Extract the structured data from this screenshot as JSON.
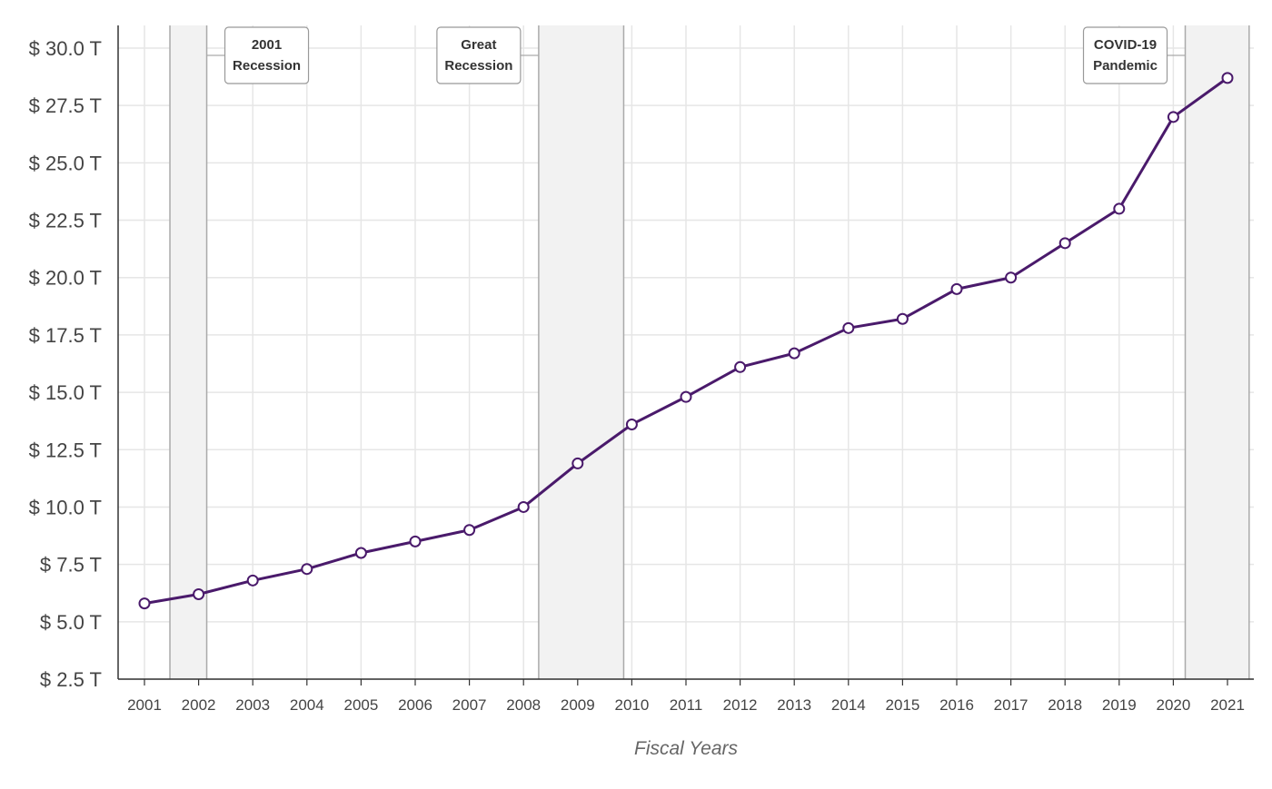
{
  "chart_data": {
    "type": "line",
    "title": "",
    "xlabel": "Fiscal Years",
    "ylabel": "",
    "x": [
      2001,
      2002,
      2003,
      2004,
      2005,
      2006,
      2007,
      2008,
      2009,
      2010,
      2011,
      2012,
      2013,
      2014,
      2015,
      2016,
      2017,
      2018,
      2019,
      2020,
      2021
    ],
    "x_tick_labels": [
      "2001",
      "2002",
      "2003",
      "2004",
      "2005",
      "2006",
      "2007",
      "2008",
      "2009",
      "2010",
      "2011",
      "2012",
      "2013",
      "2014",
      "2015",
      "2016",
      "2017",
      "2018",
      "2019",
      "2020",
      "2021"
    ],
    "series": [
      {
        "values": [
          5.8,
          6.2,
          6.8,
          7.3,
          8.0,
          8.5,
          9.0,
          10.0,
          11.9,
          13.6,
          14.8,
          16.1,
          16.7,
          17.8,
          18.2,
          19.5,
          20.0,
          21.5,
          23.0,
          27.0,
          28.7
        ],
        "color": "#4a1a6b",
        "marker": "circle",
        "marker_fill": "#ffffff"
      }
    ],
    "ylim": [
      2.5,
      30.0
    ],
    "y_ticks": [
      2.5,
      5.0,
      7.5,
      10.0,
      12.5,
      15.0,
      17.5,
      20.0,
      22.5,
      25.0,
      27.5,
      30.0
    ],
    "y_tick_labels": [
      "$ 2.5 T",
      "$ 5.0 T",
      "$ 7.5 T",
      "$ 10.0 T",
      "$ 12.5 T",
      "$ 15.0 T",
      "$ 17.5 T",
      "$ 20.0 T",
      "$ 22.5 T",
      "$ 25.0 T",
      "$  27.5 T",
      "$ 30.0 T"
    ],
    "grid": true,
    "shaded_regions": [
      {
        "x_start": 2001.47,
        "x_end": 2002.15,
        "label_lines": [
          "2001",
          "Recession"
        ],
        "label_side": "right"
      },
      {
        "x_start": 2008.28,
        "x_end": 2009.85,
        "label_lines": [
          "Great",
          "Recession"
        ],
        "label_side": "left"
      },
      {
        "x_start": 2020.22,
        "x_end": 2021.4,
        "label_lines": [
          "COVID-19",
          "Pandemic"
        ],
        "label_side": "left"
      }
    ],
    "colors": {
      "line": "#4a1a6b",
      "grid": "#e6e6e6",
      "shade": "#f2f2f2",
      "shade_border": "#aaaaaa",
      "axis": "#333333"
    }
  }
}
